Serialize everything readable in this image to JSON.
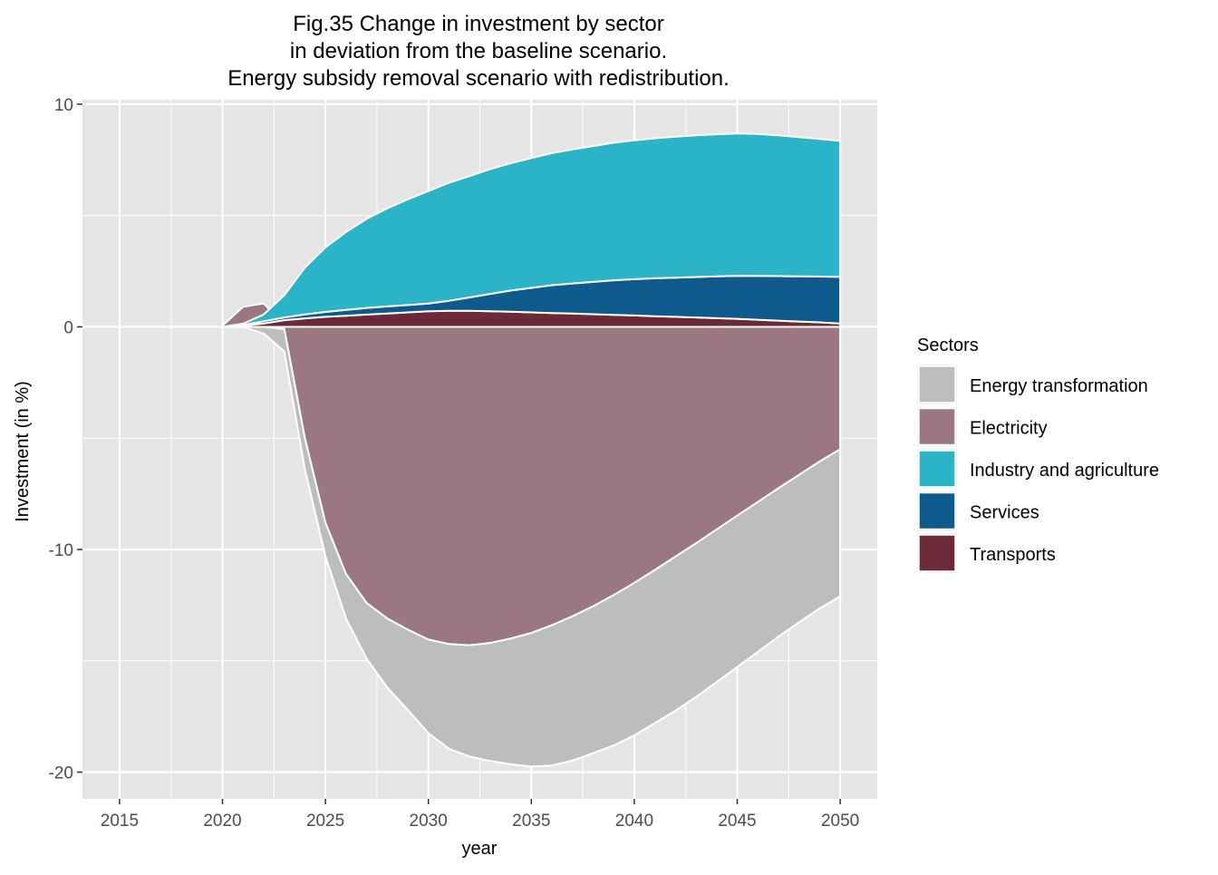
{
  "chart_data": {
    "type": "area",
    "title_lines": [
      "Fig.35 Change in investment by sector",
      "in deviation from the baseline scenario.",
      "Energy subsidy removal scenario with redistribution."
    ],
    "xlabel": "year",
    "ylabel": "Investment (in %)",
    "xlim": [
      2013.2,
      2051.8
    ],
    "ylim": [
      -21.2,
      10.2
    ],
    "x_ticks": [
      2015,
      2020,
      2025,
      2030,
      2035,
      2040,
      2045,
      2050
    ],
    "x_tick_labels": [
      "2015",
      "2020",
      "2025",
      "2030",
      "2035",
      "2040",
      "2045",
      "2050"
    ],
    "y_ticks": [
      10,
      0,
      -10,
      -20
    ],
    "y_tick_labels": [
      "10",
      "0",
      "-10",
      "-20"
    ],
    "grid": true,
    "legend": {
      "title": "Sectors",
      "placement": "right",
      "items": [
        "Energy transformation",
        "Electricity",
        "Industry and agriculture",
        "Services",
        "Transports"
      ]
    },
    "colors": {
      "Energy transformation": "#bcbdbf",
      "Electricity": "#9b7881",
      "Industry and agriculture": "#2bb4c8",
      "Services": "#0f5a8c",
      "Transports": "#6b2a38",
      "panel": "#e5e5e5",
      "grid": "#ffffff"
    },
    "x": [
      2015,
      2016,
      2017,
      2018,
      2019,
      2020,
      2021,
      2022,
      2023,
      2024,
      2025,
      2026,
      2027,
      2028,
      2029,
      2030,
      2031,
      2032,
      2033,
      2034,
      2035,
      2036,
      2037,
      2038,
      2039,
      2040,
      2041,
      2042,
      2043,
      2044,
      2045,
      2046,
      2047,
      2048,
      2049,
      2050
    ],
    "series": [
      {
        "name": "Transports",
        "values": [
          0,
          0,
          0,
          0,
          0,
          0,
          0.05,
          0.15,
          0.3,
          0.38,
          0.45,
          0.5,
          0.55,
          0.6,
          0.65,
          0.7,
          0.72,
          0.72,
          0.7,
          0.68,
          0.65,
          0.62,
          0.6,
          0.57,
          0.54,
          0.51,
          0.48,
          0.45,
          0.42,
          0.39,
          0.36,
          0.32,
          0.28,
          0.24,
          0.2,
          0.15
        ]
      },
      {
        "name": "Services",
        "values": [
          0,
          0,
          0,
          0,
          0,
          0,
          0.04,
          0.1,
          0.12,
          0.18,
          0.22,
          0.26,
          0.3,
          0.32,
          0.33,
          0.35,
          0.45,
          0.6,
          0.78,
          0.95,
          1.1,
          1.25,
          1.35,
          1.45,
          1.55,
          1.63,
          1.7,
          1.76,
          1.82,
          1.88,
          1.93,
          1.97,
          2.0,
          2.03,
          2.06,
          2.1
        ]
      },
      {
        "name": "Industry and agriculture",
        "values": [
          0,
          0,
          0,
          0,
          0,
          0,
          0.05,
          0.3,
          1.0,
          2.1,
          2.9,
          3.5,
          4.0,
          4.4,
          4.75,
          5.05,
          5.3,
          5.45,
          5.6,
          5.72,
          5.83,
          5.93,
          6.02,
          6.1,
          6.18,
          6.24,
          6.29,
          6.33,
          6.36,
          6.38,
          6.39,
          6.37,
          6.32,
          6.25,
          6.18,
          6.1
        ]
      },
      {
        "name": "Electricity",
        "values": [
          0,
          0,
          0,
          0,
          0,
          0,
          0,
          0,
          -0.1,
          -5.0,
          -8.8,
          -11.1,
          -12.4,
          -13.1,
          -13.6,
          -14.05,
          -14.25,
          -14.3,
          -14.2,
          -14.0,
          -13.75,
          -13.4,
          -13.0,
          -12.55,
          -12.05,
          -11.5,
          -10.92,
          -10.32,
          -9.72,
          -9.1,
          -8.48,
          -7.87,
          -7.25,
          -6.65,
          -6.05,
          -5.5
        ]
      },
      {
        "name": "Energy transformation",
        "values": [
          0,
          0,
          0,
          0,
          0,
          0,
          -0.01,
          -0.3,
          -1.0,
          -1.4,
          -1.5,
          -2.0,
          -2.5,
          -3.1,
          -3.6,
          -4.2,
          -4.7,
          -5.0,
          -5.3,
          -5.65,
          -6.0,
          -6.3,
          -6.48,
          -6.6,
          -6.75,
          -6.85,
          -6.88,
          -6.92,
          -6.9,
          -6.86,
          -6.8,
          -6.73,
          -6.67,
          -6.62,
          -6.6,
          -6.6
        ]
      }
    ],
    "positive_stack_order": [
      "Transports",
      "Services",
      "Industry and agriculture"
    ],
    "negative_stack_order": [
      "Electricity",
      "Energy transformation"
    ],
    "extra_fragment": {
      "name": "Electricity",
      "x": [
        2020,
        2021,
        2022,
        2023
      ],
      "values": [
        0.05,
        0.9,
        1.05,
        0.1
      ],
      "note_free": true
    }
  }
}
